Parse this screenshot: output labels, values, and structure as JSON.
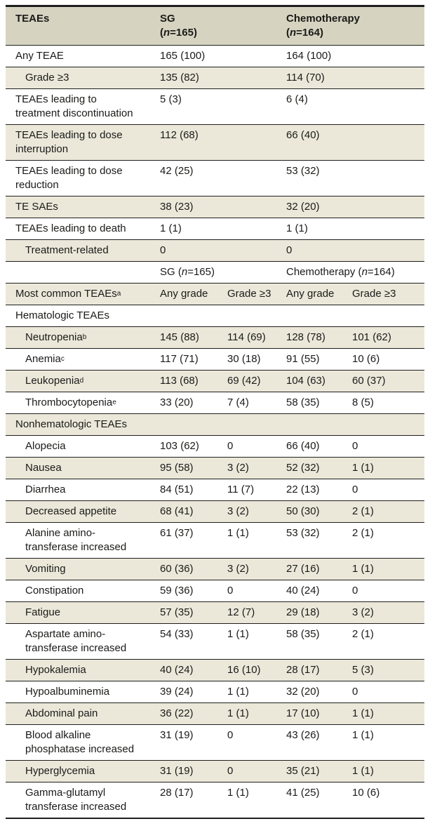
{
  "table": {
    "colors": {
      "header_bg": "#d6d3c1",
      "stripe_bg": "#ebe8da",
      "line": "#1f1e1c",
      "text": "#1b1a18"
    },
    "header": {
      "row_label": "TEAEs",
      "groups": [
        {
          "name": "SG",
          "n_text": "(n=165)"
        },
        {
          "name": "Chemotherapy",
          "n_text": "(n=164)"
        }
      ]
    },
    "summary_rows": [
      {
        "label": "Any TEAE",
        "indent": false,
        "sg": "165 (100)",
        "chemo": "164 (100)"
      },
      {
        "label": "Grade ≥3",
        "indent": true,
        "sg": "135 (82)",
        "chemo": "114 (70)"
      },
      {
        "label": "TEAEs leading to\ntreatment discontinuation",
        "indent": false,
        "sg": "5 (3)",
        "chemo": "6 (4)"
      },
      {
        "label": "TEAEs leading to dose\ninterruption",
        "indent": false,
        "sg": "112 (68)",
        "chemo": "66 (40)"
      },
      {
        "label": "TEAEs leading to dose\nreduction",
        "indent": false,
        "sg": "42 (25)",
        "chemo": "53 (32)"
      },
      {
        "label": "TE SAEs",
        "indent": false,
        "sg": "38 (23)",
        "chemo": "32 (20)"
      },
      {
        "label": "TEAEs leading to death",
        "indent": false,
        "sg": "1 (1)",
        "chemo": "1 (1)"
      },
      {
        "label": "Treatment-related",
        "indent": true,
        "sg": "0",
        "chemo": "0"
      }
    ],
    "subheader": {
      "sg": "SG (n=165)",
      "chemo": "Chemotherapy (n=164)"
    },
    "grade_header": {
      "label": "Most common TEAEs",
      "sup": "a",
      "cols": [
        "Any grade",
        "Grade ≥3",
        "Any grade",
        "Grade ≥3"
      ]
    },
    "sections": [
      {
        "section_label": "Hematologic TEAEs",
        "rows": [
          {
            "label": "Neutropenia",
            "sup": "b",
            "values": [
              "145 (88)",
              "114 (69)",
              "128 (78)",
              "101 (62)"
            ]
          },
          {
            "label": "Anemia",
            "sup": "c",
            "values": [
              "117 (71)",
              "30 (18)",
              "91 (55)",
              "10 (6)"
            ]
          },
          {
            "label": "Leukopenia",
            "sup": "d",
            "values": [
              "113 (68)",
              "69 (42)",
              "104 (63)",
              "60 (37)"
            ]
          },
          {
            "label": "Thrombocytopenia",
            "sup": "e",
            "values": [
              "33 (20)",
              "7 (4)",
              "58 (35)",
              "8 (5)"
            ]
          }
        ]
      },
      {
        "section_label": "Nonhematologic TEAEs",
        "rows": [
          {
            "label": "Alopecia",
            "sup": "",
            "values": [
              "103 (62)",
              "0",
              "66 (40)",
              "0"
            ]
          },
          {
            "label": "Nausea",
            "sup": "",
            "values": [
              "95 (58)",
              "3 (2)",
              "52 (32)",
              "1 (1)"
            ]
          },
          {
            "label": "Diarrhea",
            "sup": "",
            "values": [
              "84 (51)",
              "11 (7)",
              "22 (13)",
              "0"
            ]
          },
          {
            "label": "Decreased appetite",
            "sup": "",
            "values": [
              "68 (41)",
              "3 (2)",
              "50 (30)",
              "2 (1)"
            ]
          },
          {
            "label": "Alanine amino-\ntransferase increased",
            "sup": "",
            "values": [
              "61 (37)",
              "1 (1)",
              "53 (32)",
              "2 (1)"
            ]
          },
          {
            "label": "Vomiting",
            "sup": "",
            "values": [
              "60 (36)",
              "3 (2)",
              "27 (16)",
              "1 (1)"
            ]
          },
          {
            "label": "Constipation",
            "sup": "",
            "values": [
              "59 (36)",
              "0",
              "40 (24)",
              "0"
            ]
          },
          {
            "label": "Fatigue",
            "sup": "",
            "values": [
              "57 (35)",
              "12 (7)",
              "29 (18)",
              "3 (2)"
            ]
          },
          {
            "label": "Aspartate amino-\ntransferase increased",
            "sup": "",
            "values": [
              "54 (33)",
              "1 (1)",
              "58 (35)",
              "2 (1)"
            ]
          },
          {
            "label": "Hypokalemia",
            "sup": "",
            "values": [
              "40 (24)",
              "16 (10)",
              "28 (17)",
              "5 (3)"
            ]
          },
          {
            "label": "Hypoalbuminemia",
            "sup": "",
            "values": [
              "39 (24)",
              "1 (1)",
              "32 (20)",
              "0"
            ]
          },
          {
            "label": "Abdominal pain",
            "sup": "",
            "values": [
              "36 (22)",
              "1 (1)",
              "17 (10)",
              "1 (1)"
            ]
          },
          {
            "label": "Blood alkaline\nphosphatase increased",
            "sup": "",
            "values": [
              "31 (19)",
              "0",
              "43 (26)",
              "1 (1)"
            ]
          },
          {
            "label": "Hyperglycemia",
            "sup": "",
            "values": [
              "31 (19)",
              "0",
              "35 (21)",
              "1 (1)"
            ]
          },
          {
            "label": "Gamma-glutamyl\ntransferase increased",
            "sup": "",
            "values": [
              "28 (17)",
              "1 (1)",
              "41 (25)",
              "10 (6)"
            ]
          }
        ]
      }
    ]
  }
}
